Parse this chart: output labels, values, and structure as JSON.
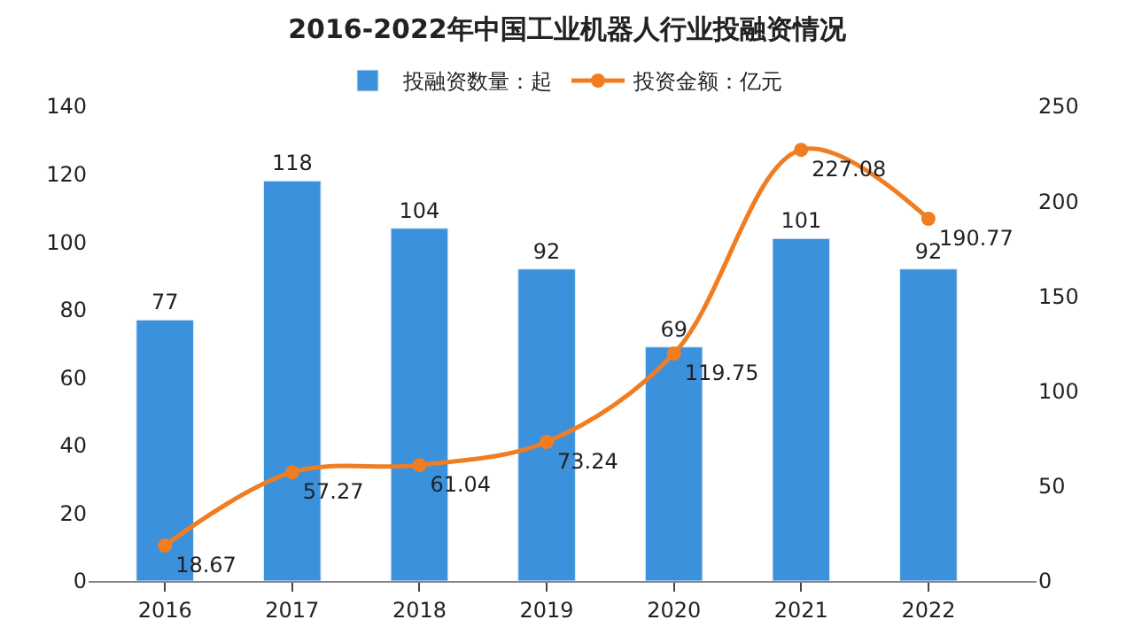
{
  "chart_data": {
    "type": "bar",
    "title": "2016-2022年中国工业机器人行业投融资情况",
    "categories": [
      "2016",
      "2017",
      "2018",
      "2019",
      "2020",
      "2021",
      "2022"
    ],
    "series": [
      {
        "name": "投融资数量：起",
        "color": "#3b91dc",
        "values": [
          77,
          118,
          104,
          92,
          69,
          101,
          92
        ]
      },
      {
        "name": "投资金额：亿元",
        "type": "line",
        "axis": "y2",
        "color": "#f07d22",
        "marker": "circle",
        "values": [
          18.67,
          57.27,
          61.04,
          73.24,
          119.75,
          227.08,
          190.77
        ]
      }
    ],
    "ylim": [
      0,
      140
    ],
    "yticks": [
      0,
      20,
      40,
      60,
      80,
      100,
      120,
      140
    ],
    "y2lim": [
      0,
      250
    ],
    "y2ticks": [
      0,
      50,
      100,
      150,
      200,
      250
    ],
    "data_labels": true,
    "legend": "top"
  }
}
